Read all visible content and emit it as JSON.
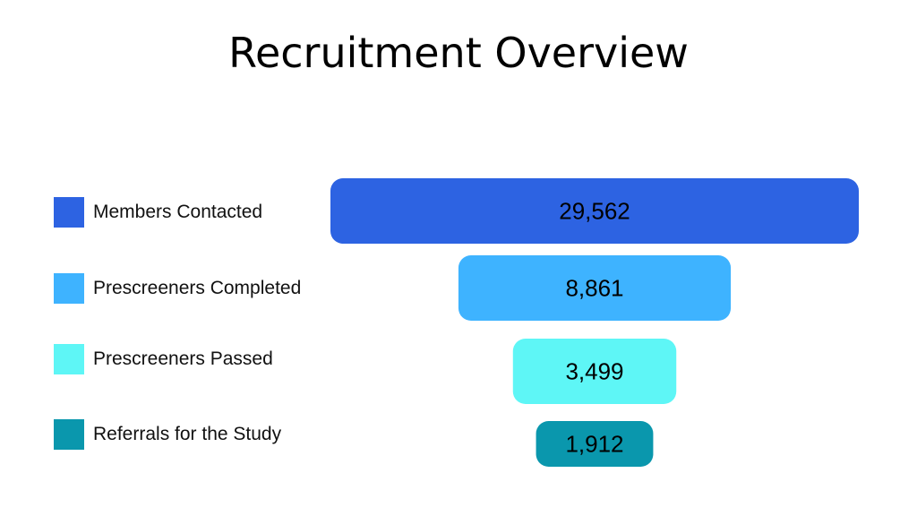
{
  "chart_data": {
    "type": "bar",
    "title": "Recruitment Overview",
    "categories": [
      "Members Contacted",
      "Prescreeners Completed",
      "Prescreeners Passed",
      "Referrals for the Study"
    ],
    "values": [
      29562,
      8861,
      3499,
      1912
    ],
    "value_labels": [
      "29,562",
      "8,861",
      "3,499",
      "1,912"
    ],
    "colors": [
      "#2d63e2",
      "#3eb3ff",
      "#5ef6f6",
      "#0a97ad"
    ],
    "legend": [
      "Members Contacted",
      "Prescreeners Completed",
      "Prescreeners Passed",
      "Referrals for the Study"
    ],
    "legend_position": "left",
    "orientation": "funnel",
    "grid": false
  }
}
